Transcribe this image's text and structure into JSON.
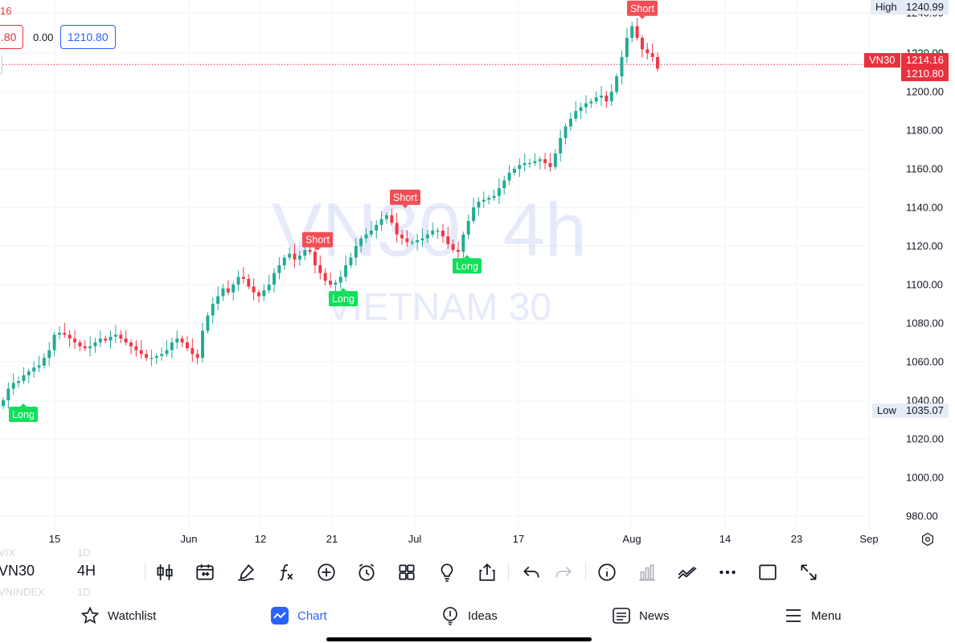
{
  "header": {
    "cut_value": "16",
    "ohlc_pill": ".80",
    "zero_value": "0.00",
    "price_pill": "1210.80"
  },
  "watermark": {
    "symbol_interval": "VN30  4h",
    "name": "VIETNAM 30"
  },
  "price_axis": {
    "high_label": "High",
    "high_value": "1240.99",
    "low_label": "Low",
    "low_value": "1035.07",
    "symbol_tag": "VN30",
    "last_price": "1214.16",
    "close_price": "1210.80"
  },
  "chart_data": {
    "type": "candlestick",
    "ylim": [
      975,
      1243
    ],
    "y_ticks": [
      "980.00",
      "1000.00",
      "1020.00",
      "1040.00",
      "1060.00",
      "1080.00",
      "1100.00",
      "1120.00",
      "1140.00",
      "1160.00",
      "1180.00",
      "1200.00",
      "1220.00",
      "1240.99"
    ],
    "x_ticks": [
      "15",
      "Jun",
      "12",
      "21",
      "Jul",
      "17",
      "Aug",
      "14",
      "23",
      "Sep"
    ],
    "last_price_line": 1214.16,
    "grid": true,
    "colors": {
      "up": "#22ab94",
      "down": "#f23645",
      "last_line": "#f23645",
      "grid": "#f0f3fa"
    },
    "closes": [
      1040,
      1046,
      1049,
      1050,
      1053,
      1055,
      1057,
      1058,
      1062,
      1066,
      1074,
      1075,
      1074,
      1072,
      1070,
      1068,
      1067,
      1068,
      1070,
      1072,
      1071,
      1073,
      1074,
      1072,
      1070,
      1068,
      1066,
      1064,
      1062,
      1062,
      1063,
      1064,
      1066,
      1070,
      1072,
      1070,
      1067,
      1064,
      1062,
      1076,
      1084,
      1090,
      1094,
      1098,
      1096,
      1100,
      1104,
      1103,
      1099,
      1096,
      1094,
      1097,
      1100,
      1106,
      1110,
      1114,
      1116,
      1113,
      1115,
      1118,
      1117,
      1110,
      1106,
      1102,
      1100,
      1101,
      1104,
      1110,
      1114,
      1120,
      1124,
      1126,
      1128,
      1131,
      1134,
      1136,
      1132,
      1126,
      1124,
      1122,
      1122,
      1123,
      1124,
      1126,
      1128,
      1128,
      1125,
      1121,
      1118,
      1117,
      1126,
      1133,
      1140,
      1143,
      1144,
      1145,
      1146,
      1150,
      1154,
      1158,
      1160,
      1162,
      1163,
      1163,
      1164,
      1165,
      1163,
      1161,
      1168,
      1176,
      1182,
      1186,
      1190,
      1192,
      1194,
      1195,
      1197,
      1198,
      1195,
      1200,
      1208,
      1218,
      1228,
      1234,
      1228,
      1222,
      1220,
      1218,
      1212
    ],
    "signals": [
      {
        "label": "Long",
        "type": "long",
        "value": 1040
      },
      {
        "label": "Short",
        "type": "short",
        "value": 1116
      },
      {
        "label": "Long",
        "type": "long",
        "value": 1100
      },
      {
        "label": "Short",
        "type": "short",
        "value": 1138
      },
      {
        "label": "Long",
        "type": "long",
        "value": 1117
      },
      {
        "label": "Short",
        "type": "short",
        "value": 1236
      }
    ]
  },
  "toolbar": {
    "ghost_top_symbol": "VIX",
    "ghost_top_interval": "1D",
    "symbol": "VN30",
    "interval": "4H",
    "ghost_bottom_symbol": "VNINDEX",
    "ghost_bottom_interval": "1D",
    "icons": [
      "indicators-icon",
      "compare-range-icon",
      "drawing-pen-icon",
      "function-icon",
      "add-icon",
      "alarm-icon",
      "layout-grid-icon",
      "idea-lightbulb-icon",
      "share-icon",
      "undo-icon",
      "redo-icon",
      "info-icon",
      "volume-bars-icon",
      "trend-lines-icon",
      "more-icon",
      "square-icon",
      "fullscreen-icon"
    ]
  },
  "bottom_nav": {
    "items": [
      {
        "label": "Watchlist",
        "icon": "star-icon"
      },
      {
        "label": "Chart",
        "icon": "chart-icon"
      },
      {
        "label": "Ideas",
        "icon": "lightbulb-icon"
      },
      {
        "label": "News",
        "icon": "news-icon"
      },
      {
        "label": "Menu",
        "icon": "menu-icon"
      }
    ]
  }
}
